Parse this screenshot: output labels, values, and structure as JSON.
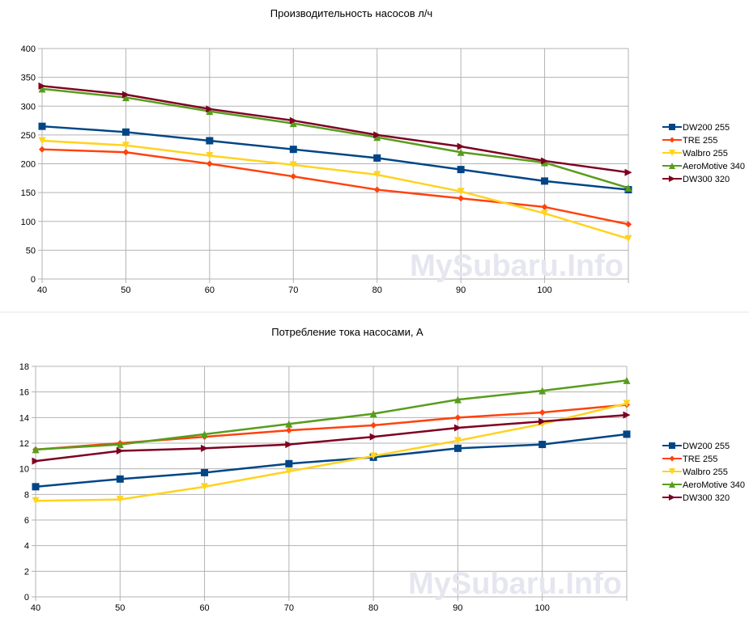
{
  "watermark": "MySubaru.Info",
  "chart_data": [
    {
      "type": "line",
      "title": "Производительность насосов л/ч",
      "xlabel": "",
      "ylabel": "",
      "x": [
        40,
        50,
        60,
        70,
        80,
        90,
        100,
        110
      ],
      "x_tick_labels": [
        "40",
        "50",
        "60",
        "70",
        "80",
        "90",
        "100",
        ""
      ],
      "ylim": [
        0,
        400
      ],
      "y_ticks": [
        0,
        50,
        100,
        150,
        200,
        250,
        300,
        350,
        400
      ],
      "grid": true,
      "legend": "right",
      "series": [
        {
          "name": "DW200 255",
          "color": "#004586",
          "marker": "square",
          "values": [
            265,
            255,
            240,
            225,
            210,
            190,
            170,
            155
          ]
        },
        {
          "name": "TRE 255",
          "color": "#ff420e",
          "marker": "diamond",
          "values": [
            225,
            220,
            200,
            178,
            155,
            140,
            125,
            95
          ]
        },
        {
          "name": "Walbro 255",
          "color": "#ffd320",
          "marker": "triangle-down",
          "values": [
            240,
            232,
            214,
            198,
            181,
            152,
            114,
            70
          ]
        },
        {
          "name": "AeroMotive 340",
          "color": "#579d1c",
          "marker": "triangle-up",
          "values": [
            330,
            315,
            291,
            270,
            246,
            220,
            202,
            158
          ]
        },
        {
          "name": "DW300 320",
          "color": "#7e0021",
          "marker": "triangle-right",
          "values": [
            335,
            320,
            295,
            275,
            250,
            230,
            205,
            185
          ]
        }
      ]
    },
    {
      "type": "line",
      "title": "Потребление тока насосами, А",
      "xlabel": "",
      "ylabel": "",
      "x": [
        40,
        50,
        60,
        70,
        80,
        90,
        100,
        110
      ],
      "x_tick_labels": [
        "40",
        "50",
        "60",
        "70",
        "80",
        "90",
        "100",
        ""
      ],
      "ylim": [
        0,
        18
      ],
      "y_ticks": [
        0,
        2,
        4,
        6,
        8,
        10,
        12,
        14,
        16,
        18
      ],
      "grid": true,
      "legend": "right",
      "series": [
        {
          "name": "DW200 255",
          "color": "#004586",
          "marker": "square",
          "values": [
            8.6,
            9.2,
            9.7,
            10.4,
            10.9,
            11.6,
            11.9,
            12.7
          ]
        },
        {
          "name": "TRE 255",
          "color": "#ff420e",
          "marker": "diamond",
          "values": [
            11.5,
            12.0,
            12.5,
            13.0,
            13.4,
            14.0,
            14.4,
            15.0
          ]
        },
        {
          "name": "Walbro 255",
          "color": "#ffd320",
          "marker": "triangle-down",
          "values": [
            7.5,
            7.6,
            8.6,
            9.8,
            11.0,
            12.2,
            13.5,
            15.1
          ]
        },
        {
          "name": "AeroMotive 340",
          "color": "#579d1c",
          "marker": "triangle-up",
          "values": [
            11.5,
            11.9,
            12.7,
            13.5,
            14.3,
            15.4,
            16.1,
            16.9
          ]
        },
        {
          "name": "DW300 320",
          "color": "#7e0021",
          "marker": "triangle-right",
          "values": [
            10.6,
            11.4,
            11.6,
            11.9,
            12.5,
            13.2,
            13.7,
            14.2
          ]
        }
      ]
    }
  ]
}
